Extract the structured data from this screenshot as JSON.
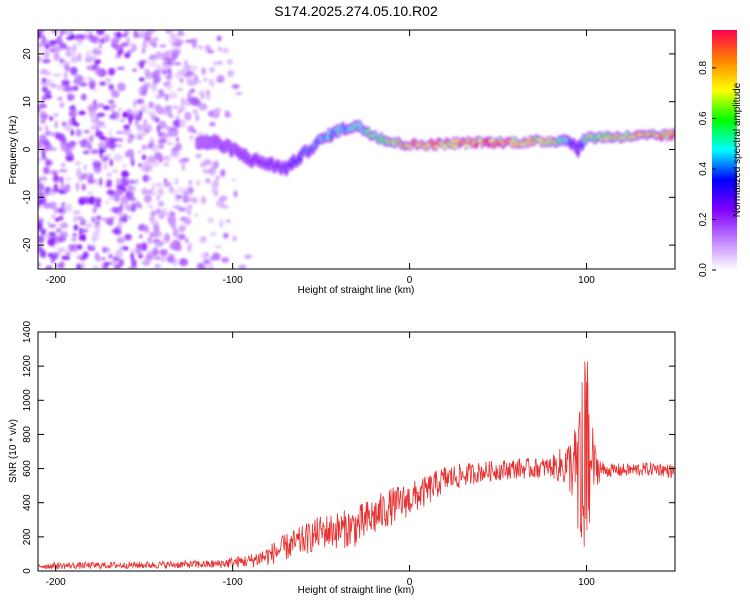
{
  "title": "S174.2025.274.05.10.R02",
  "chart_data": [
    {
      "type": "heatmap",
      "title": "S174.2025.274.05.10.R02",
      "xlabel": "Height of straight line (km)",
      "ylabel": "Frequency (Hz)",
      "xlim": [
        -210,
        150
      ],
      "ylim": [
        -25,
        25
      ],
      "xticks": [
        -200,
        -100,
        0,
        100
      ],
      "xtick_labels": [
        "-200",
        "-100",
        "0",
        "100"
      ],
      "yticks": [
        -20,
        -10,
        0,
        10,
        20
      ],
      "ytick_labels": [
        "-20",
        "-10",
        "0",
        "10",
        "20"
      ],
      "ridge": {
        "x": [
          -120,
          -110,
          -100,
          -90,
          -80,
          -70,
          -60,
          -50,
          -40,
          -30,
          -20,
          -10,
          0,
          10,
          20,
          40,
          60,
          80,
          90,
          95,
          100,
          120,
          150
        ],
        "freq": [
          1.5,
          1.5,
          0,
          -2,
          -3,
          -4,
          -1,
          2,
          4,
          5,
          3,
          1.5,
          1,
          1,
          1.2,
          1.5,
          1.5,
          1.8,
          2,
          0,
          2.5,
          2.7,
          3
        ],
        "amp": [
          0.15,
          0.18,
          0.22,
          0.25,
          0.28,
          0.3,
          0.45,
          0.5,
          0.55,
          0.55,
          0.7,
          0.8,
          0.9,
          0.95,
          0.9,
          0.95,
          0.9,
          0.85,
          0.5,
          0.3,
          0.7,
          0.85,
          0.9
        ]
      },
      "noise_region_x": [
        -210,
        -90
      ],
      "colorbar": {
        "label": "Normalized spectral amplitude",
        "ticks": [
          0.0,
          0.2,
          0.4,
          0.6,
          0.8
        ],
        "tick_labels": [
          "0.0",
          "0.2",
          "0.4",
          "0.6",
          "0.8"
        ],
        "range": [
          0,
          0.95
        ],
        "colors": [
          "#ffffff",
          "#c080ff",
          "#8000ff",
          "#0000ff",
          "#00ffff",
          "#00ff00",
          "#ffff00",
          "#ff8000",
          "#ff0050"
        ]
      },
      "grid": false
    },
    {
      "type": "line",
      "xlabel": "Height of straight line (km)",
      "ylabel": "SNR (10 * v/v)",
      "xlim": [
        -210,
        150
      ],
      "ylim": [
        0,
        1400
      ],
      "xticks": [
        -200,
        -100,
        0,
        100
      ],
      "xtick_labels": [
        "-200",
        "-100",
        "0",
        "100"
      ],
      "yticks": [
        0,
        200,
        400,
        600,
        800,
        1000,
        1200,
        1400
      ],
      "ytick_labels": [
        "0",
        "200",
        "400",
        "600",
        "800",
        "1000",
        "1200",
        "1400"
      ],
      "series": [
        {
          "name": "SNR",
          "color": "#e83030",
          "envelope_x": [
            -210,
            -150,
            -110,
            -90,
            -80,
            -70,
            -60,
            -50,
            -40,
            -30,
            -20,
            -10,
            0,
            10,
            20,
            30,
            40,
            50,
            60,
            70,
            80,
            90,
            95,
            100,
            105,
            110,
            120,
            130,
            140,
            150
          ],
          "envelope_y": [
            30,
            35,
            40,
            60,
            90,
            140,
            180,
            230,
            240,
            260,
            320,
            380,
            420,
            470,
            540,
            560,
            580,
            590,
            600,
            600,
            610,
            620,
            600,
            700,
            610,
            590,
            590,
            595,
            600,
            580
          ],
          "noise_amp": [
            20,
            20,
            25,
            40,
            60,
            80,
            90,
            100,
            110,
            120,
            120,
            110,
            100,
            90,
            80,
            70,
            60,
            60,
            60,
            60,
            60,
            150,
            300,
            500,
            120,
            40,
            40,
            40,
            40,
            40
          ]
        }
      ],
      "grid": false
    }
  ]
}
